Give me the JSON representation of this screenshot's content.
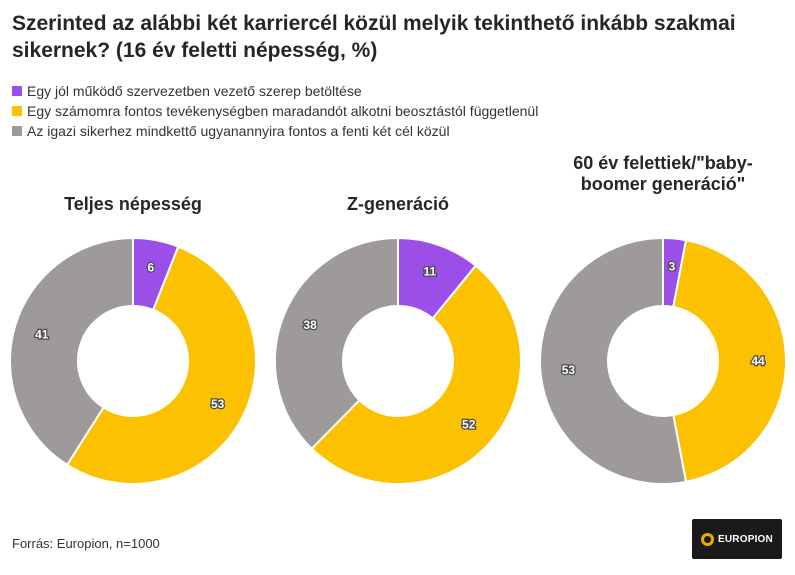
{
  "header": {
    "title": "Szerinted az alábbi két karriercél közül melyik tekinthető inkább szakmai sikernek? (16 év feletti népesség, %)"
  },
  "legend": [
    {
      "label": "Egy jól működő szervezetben vezető szerep betöltése",
      "color": "#9b4ee8"
    },
    {
      "label": "Egy számomra fontos tevékenységben maradandót alkotni beosztástól függetlenül",
      "color": "#fcc100"
    },
    {
      "label": "Az igazi sikerhez mindkettő ugyanannyira fontos a fenti két cél közül",
      "color": "#9e9a9a"
    }
  ],
  "chart_data": [
    {
      "type": "pie",
      "title": "Teljes népesség",
      "categories": [
        "Egy jól működő szervezetben vezető szerep betöltése",
        "Egy számomra fontos tevékenységben maradandót alkotni beosztástól függetlenül",
        "Az igazi sikerhez mindkettő ugyanannyira fontos a fenti két cél közül"
      ],
      "values": [
        6,
        53,
        41
      ],
      "colors": [
        "#9b4ee8",
        "#fcc100",
        "#9e9a9a"
      ]
    },
    {
      "type": "pie",
      "title": "Z-generáció",
      "categories": [
        "Egy jól működő szervezetben vezető szerep betöltése",
        "Egy számomra fontos tevékenységben maradandót alkotni beosztástól függetlenül",
        "Az igazi sikerhez mindkettő ugyanannyira fontos a fenti két cél közül"
      ],
      "values": [
        11,
        52,
        38
      ],
      "colors": [
        "#9b4ee8",
        "#fcc100",
        "#9e9a9a"
      ]
    },
    {
      "type": "pie",
      "title": "60 év felettiek/\"baby-boomer generáció\"",
      "categories": [
        "Egy jól működő szervezetben vezető szerep betöltése",
        "Egy számomra fontos tevékenységben maradandót alkotni beosztástól függetlenül",
        "Az igazi sikerhez mindkettő ugyanannyira fontos a fenti két cél közül"
      ],
      "values": [
        3,
        44,
        53
      ],
      "colors": [
        "#9b4ee8",
        "#fcc100",
        "#9e9a9a"
      ]
    }
  ],
  "footer": {
    "source": "Forrás: Europion, n=1000",
    "logo_text": "EUROPION"
  }
}
